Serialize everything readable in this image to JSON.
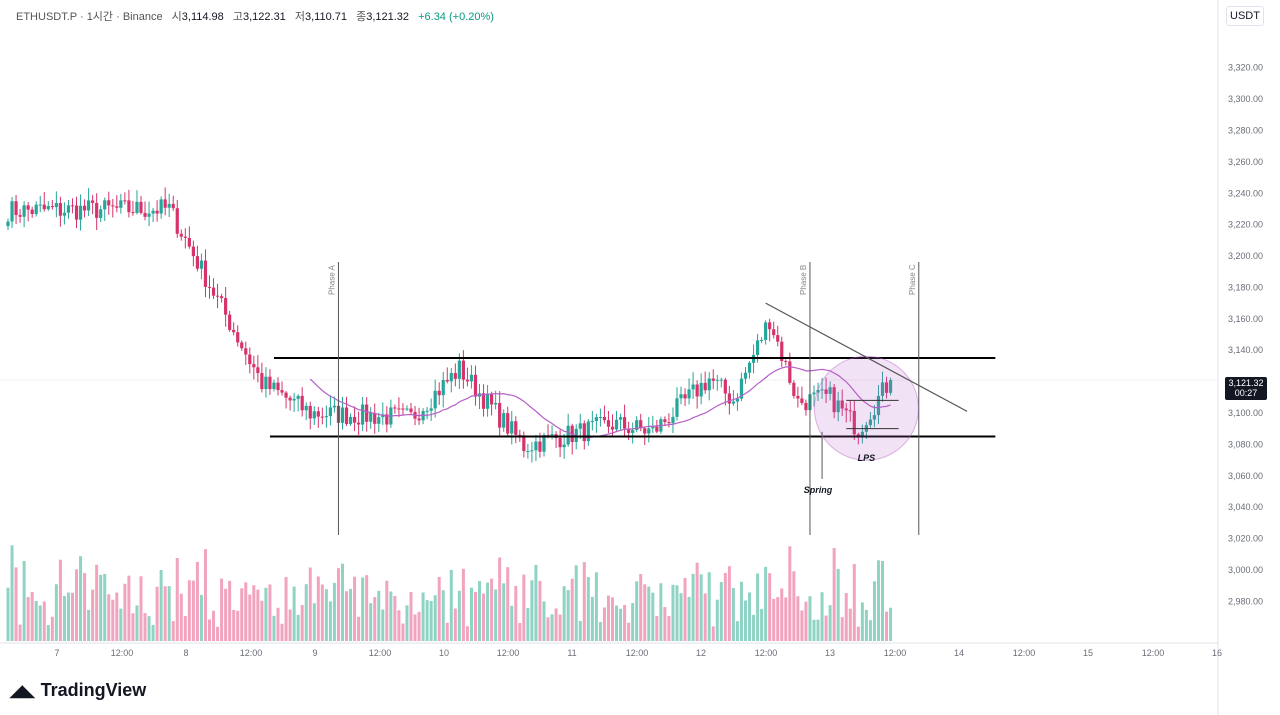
{
  "header": {
    "symbol": "ETHUSDT.P · 1시간 · Binance",
    "open_label": "시",
    "open": "3,114.98",
    "high_label": "고",
    "high": "3,122.31",
    "low_label": "저",
    "low": "3,110.71",
    "close_label": "종",
    "close": "3,121.32",
    "change": "+6.34 (+0.20%)"
  },
  "currency": "USDT",
  "price_tag": {
    "price": "3,121.32",
    "timer": "00:27"
  },
  "brand": "TradingView",
  "colors": {
    "up": "#26a69a",
    "down": "#d6336c",
    "ma": "#b55fc7",
    "vol_up": "#8fd3c4",
    "vol_down": "#f2a3bd"
  },
  "chart_data": {
    "type": "candlestick",
    "y_axis": {
      "range": [
        2970,
        3330
      ],
      "ticks": [
        "3,320.00",
        "3,300.00",
        "3,280.00",
        "3,260.00",
        "3,240.00",
        "3,220.00",
        "3,200.00",
        "3,180.00",
        "3,160.00",
        "3,140.00",
        "3,120.00",
        "3,100.00",
        "3,080.00",
        "3,060.00",
        "3,040.00",
        "3,020.00",
        "3,000.00",
        "2,980.00"
      ]
    },
    "x_axis": {
      "ticks": [
        "7",
        "12:00",
        "8",
        "12:00",
        "9",
        "12:00",
        "10",
        "12:00",
        "11",
        "12:00",
        "12",
        "12:00",
        "13",
        "12:00",
        "14",
        "12:00",
        "15",
        "12:00",
        "16"
      ]
    },
    "anchors": [
      {
        "time": 0,
        "price": 3229
      },
      {
        "time": 40,
        "price": 3230
      },
      {
        "time": 63,
        "price": 3119
      },
      {
        "time": 75,
        "price": 3100
      },
      {
        "time": 100,
        "price": 3097
      },
      {
        "time": 112,
        "price": 3128
      },
      {
        "time": 128,
        "price": 3079
      },
      {
        "time": 150,
        "price": 3093
      },
      {
        "time": 160,
        "price": 3088
      },
      {
        "time": 174,
        "price": 3122
      },
      {
        "time": 180,
        "price": 3108
      },
      {
        "time": 189,
        "price": 3160
      },
      {
        "time": 196,
        "price": 3107
      },
      {
        "time": 204,
        "price": 3110
      },
      {
        "time": 211,
        "price": 3090
      },
      {
        "time": 219,
        "price": 3121
      }
    ],
    "annotations": {
      "range_top": 3135,
      "range_bottom": 3085,
      "phases": [
        {
          "label": "Phase A",
          "time": 82
        },
        {
          "label": "Phase B",
          "time": 199
        },
        {
          "label": "Phase C",
          "time": 226
        }
      ],
      "spring_label": "Spring",
      "lps_label": "LPS",
      "trendline": [
        {
          "time": 188,
          "price": 3170
        },
        {
          "time": 238,
          "price": 3101
        }
      ]
    }
  }
}
